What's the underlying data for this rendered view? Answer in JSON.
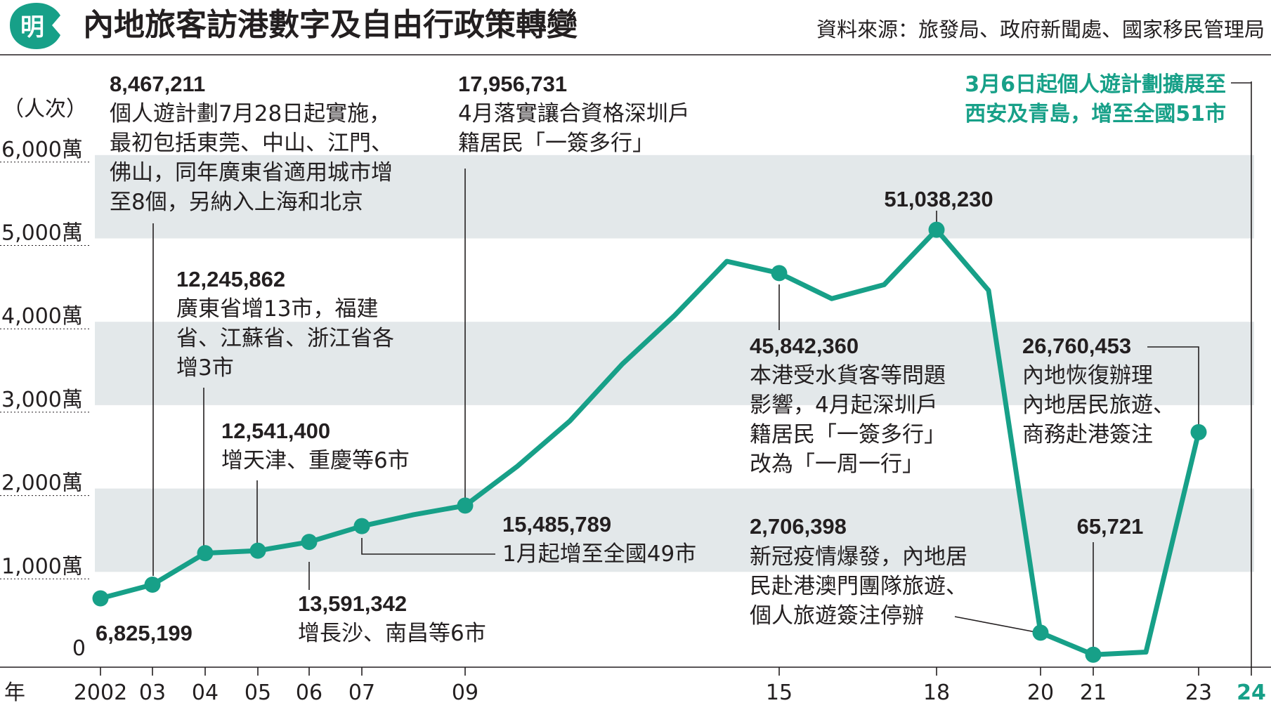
{
  "header": {
    "logo_char": "明",
    "title": "內地旅客訪港數字及自由行政策轉變",
    "source": "資料來源：旅發局、政府新聞處、國家移民管理局"
  },
  "colors": {
    "line": "#17a088",
    "band": "#e3e8ea",
    "text": "#231f20",
    "logo_bg": "#17a088",
    "accent": "#17a088"
  },
  "chart_data": {
    "type": "line",
    "title": "內地旅客訪港數字及自由行政策轉變",
    "x_unit_label": "年",
    "y_unit_label": "（人次）",
    "ylim": [
      0,
      60000000
    ],
    "y_ticks": [
      {
        "value": 0,
        "label": "0"
      },
      {
        "value": 10000000,
        "label": "1,000萬"
      },
      {
        "value": 20000000,
        "label": "2,000萬"
      },
      {
        "value": 30000000,
        "label": "3,000萬"
      },
      {
        "value": 40000000,
        "label": "4,000萬"
      },
      {
        "value": 50000000,
        "label": "5,000萬"
      },
      {
        "value": 60000000,
        "label": "6,000萬"
      }
    ],
    "x_ticks": [
      {
        "year": 2002,
        "label": "2002"
      },
      {
        "year": 2003,
        "label": "03"
      },
      {
        "year": 2004,
        "label": "04"
      },
      {
        "year": 2005,
        "label": "05"
      },
      {
        "year": 2006,
        "label": "06"
      },
      {
        "year": 2007,
        "label": "07"
      },
      {
        "year": 2009,
        "label": "09"
      },
      {
        "year": 2015,
        "label": "15"
      },
      {
        "year": 2018,
        "label": "18"
      },
      {
        "year": 2020,
        "label": "20"
      },
      {
        "year": 2021,
        "label": "21"
      },
      {
        "year": 2023,
        "label": "23"
      },
      {
        "year": 2024,
        "label": "24",
        "highlight": true
      }
    ],
    "grid": false,
    "series": [
      {
        "values": [
          {
            "x": 2002,
            "y": 6825199
          },
          {
            "x": 2003,
            "y": 8467211
          },
          {
            "x": 2004,
            "y": 12245862
          },
          {
            "x": 2005,
            "y": 12541400
          },
          {
            "x": 2006,
            "y": 13591342
          },
          {
            "x": 2007,
            "y": 15485789
          },
          {
            "x": 2008,
            "y": 16860000
          },
          {
            "x": 2009,
            "y": 17956731
          },
          {
            "x": 2010,
            "y": 22680000
          },
          {
            "x": 2011,
            "y": 28100000
          },
          {
            "x": 2012,
            "y": 34910000
          },
          {
            "x": 2013,
            "y": 40750000
          },
          {
            "x": 2014,
            "y": 47250000
          },
          {
            "x": 2015,
            "y": 45842360
          },
          {
            "x": 2016,
            "y": 42780000
          },
          {
            "x": 2017,
            "y": 44450000
          },
          {
            "x": 2018,
            "y": 51038230
          },
          {
            "x": 2019,
            "y": 43770000
          },
          {
            "x": 2020,
            "y": 2706398
          },
          {
            "x": 2021,
            "y": 65721
          },
          {
            "x": 2022,
            "y": 380000
          },
          {
            "x": 2023,
            "y": 26760453
          }
        ],
        "markers": [
          2002,
          2003,
          2004,
          2005,
          2006,
          2007,
          2009,
          2015,
          2018,
          2020,
          2021,
          2023
        ]
      }
    ],
    "annotations": [
      {
        "year": 2003,
        "value": "8,467,211",
        "lines": [
          "個人遊計劃7月28日起實施，",
          "最初包括東莞、中山、江門、",
          "佛山，同年廣東省適用城市增",
          "至8個，另納入上海和北京"
        ]
      },
      {
        "year": 2004,
        "value": "12,245,862",
        "lines": [
          "廣東省增13市，福建",
          "省、江蘇省、浙江省各",
          "增3市"
        ]
      },
      {
        "year": 2005,
        "value": "12,541,400",
        "lines": [
          "增天津、重慶等6市"
        ]
      },
      {
        "year": 2006,
        "value": "13,591,342",
        "lines": [
          "增長沙、南昌等6市"
        ]
      },
      {
        "year": 2007,
        "value": "15,485,789",
        "lines": [
          "1月起增至全國49市"
        ]
      },
      {
        "year": 2009,
        "value": "17,956,731",
        "lines": [
          "4月落實讓合資格深圳戶",
          "籍居民「一簽多行」"
        ]
      },
      {
        "year": 2015,
        "value": "45,842,360",
        "lines": [
          "本港受水貨客等問題",
          "影響，4月起深圳戶",
          "籍居民「一簽多行」",
          "改為「一周一行」"
        ]
      },
      {
        "year": 2018,
        "value": "51,038,230",
        "lines": []
      },
      {
        "year": 2020,
        "value": "2,706,398",
        "lines": [
          "新冠疫情爆發，內地居",
          "民赴港澳門團隊旅遊、",
          "個人旅遊簽注停辦"
        ]
      },
      {
        "year": 2021,
        "value": "65,721",
        "lines": []
      },
      {
        "year": 2023,
        "value": "26,760,453",
        "lines": [
          "內地恢復辦理",
          "內地居民旅遊、",
          "商務赴港簽注"
        ]
      },
      {
        "year": 2002,
        "value": "6,825,199",
        "lines": []
      }
    ],
    "callout_2024": {
      "year": 2024,
      "lines": [
        "3月6日起個人遊計劃擴展至",
        "西安及青島，增至全國51市"
      ]
    }
  }
}
